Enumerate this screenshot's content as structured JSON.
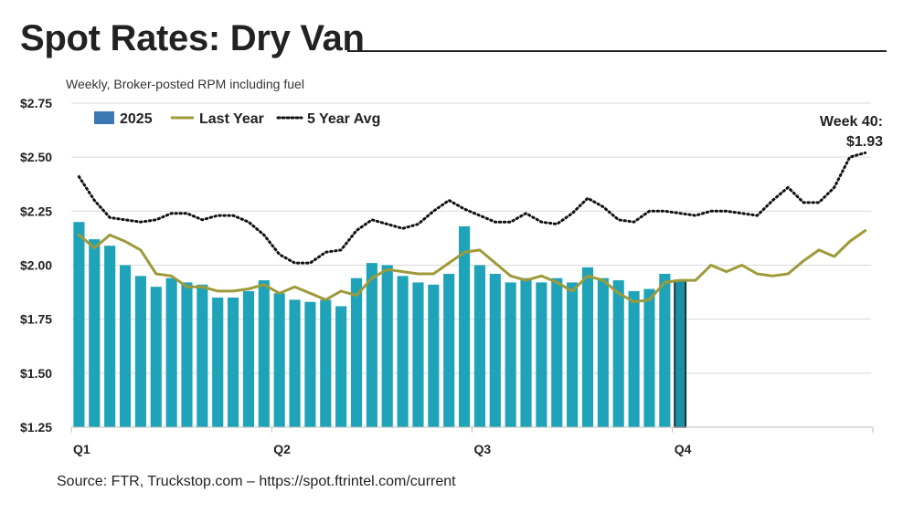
{
  "title": "Spot Rates: Dry Van",
  "subtitle": "Weekly, Broker-posted RPM including fuel",
  "source": "Source: FTR, Truckstop.com – https://spot.ftrintel.com/current",
  "colors": {
    "bar": "#1fa3b8",
    "bar_legend": "#3a78b3",
    "bar_latest": "#1a8fa6",
    "last_year": "#9e9a3a",
    "five_year": "#111111",
    "grid": "#d9d9d9"
  },
  "chart_data": {
    "type": "bar",
    "title": "Spot Rates: Dry Van",
    "subtitle": "Weekly, Broker-posted RPM including fuel",
    "ylabel": "",
    "xlabel": "",
    "ylim": [
      1.25,
      2.75
    ],
    "yticks": [
      1.25,
      1.5,
      1.75,
      2.0,
      2.25,
      2.5,
      2.75
    ],
    "ytick_labels": [
      "$1.25",
      "$1.50",
      "$1.75",
      "$2.00",
      "$2.25",
      "$2.50",
      "$2.75"
    ],
    "total_weeks": 52,
    "quarter_labels": [
      {
        "label": "Q1",
        "week": 1
      },
      {
        "label": "Q2",
        "week": 14
      },
      {
        "label": "Q3",
        "week": 27
      },
      {
        "label": "Q4",
        "week": 40
      }
    ],
    "legend": [
      "2025",
      "Last Year",
      "5 Year Avg"
    ],
    "annotation": {
      "line1": "Week 40:",
      "line2": "$1.93",
      "week": 40
    },
    "series": [
      {
        "name": "2025",
        "kind": "bar",
        "values": [
          2.2,
          2.12,
          2.09,
          2.0,
          1.95,
          1.9,
          1.94,
          1.92,
          1.91,
          1.85,
          1.85,
          1.88,
          1.93,
          1.87,
          1.84,
          1.83,
          1.84,
          1.81,
          1.94,
          2.01,
          2.0,
          1.95,
          1.92,
          1.91,
          1.96,
          2.18,
          2.0,
          1.96,
          1.92,
          1.94,
          1.92,
          1.94,
          1.92,
          1.99,
          1.94,
          1.93,
          1.88,
          1.89,
          1.96,
          1.93
        ]
      },
      {
        "name": "Last Year",
        "kind": "line",
        "values": [
          2.14,
          2.08,
          2.14,
          2.11,
          2.07,
          1.96,
          1.95,
          1.9,
          1.9,
          1.88,
          1.88,
          1.89,
          1.91,
          1.87,
          1.9,
          1.87,
          1.84,
          1.88,
          1.86,
          1.94,
          1.98,
          1.97,
          1.96,
          1.96,
          2.01,
          2.06,
          2.07,
          2.01,
          1.95,
          1.93,
          1.95,
          1.92,
          1.88,
          1.95,
          1.93,
          1.87,
          1.83,
          1.84,
          1.92,
          1.93,
          1.93,
          2.0,
          1.97,
          2.0,
          1.96,
          1.95,
          1.96,
          2.02,
          2.07,
          2.04,
          2.11,
          2.16
        ]
      },
      {
        "name": "5 Year Avg",
        "kind": "line",
        "values": [
          2.41,
          2.3,
          2.22,
          2.21,
          2.2,
          2.21,
          2.24,
          2.24,
          2.21,
          2.23,
          2.23,
          2.2,
          2.14,
          2.05,
          2.01,
          2.01,
          2.06,
          2.07,
          2.16,
          2.21,
          2.19,
          2.17,
          2.19,
          2.25,
          2.3,
          2.26,
          2.23,
          2.2,
          2.2,
          2.24,
          2.2,
          2.19,
          2.24,
          2.31,
          2.27,
          2.21,
          2.2,
          2.25,
          2.25,
          2.24,
          2.23,
          2.25,
          2.25,
          2.24,
          2.23,
          2.3,
          2.36,
          2.29,
          2.29,
          2.36,
          2.5,
          2.52
        ]
      }
    ]
  }
}
